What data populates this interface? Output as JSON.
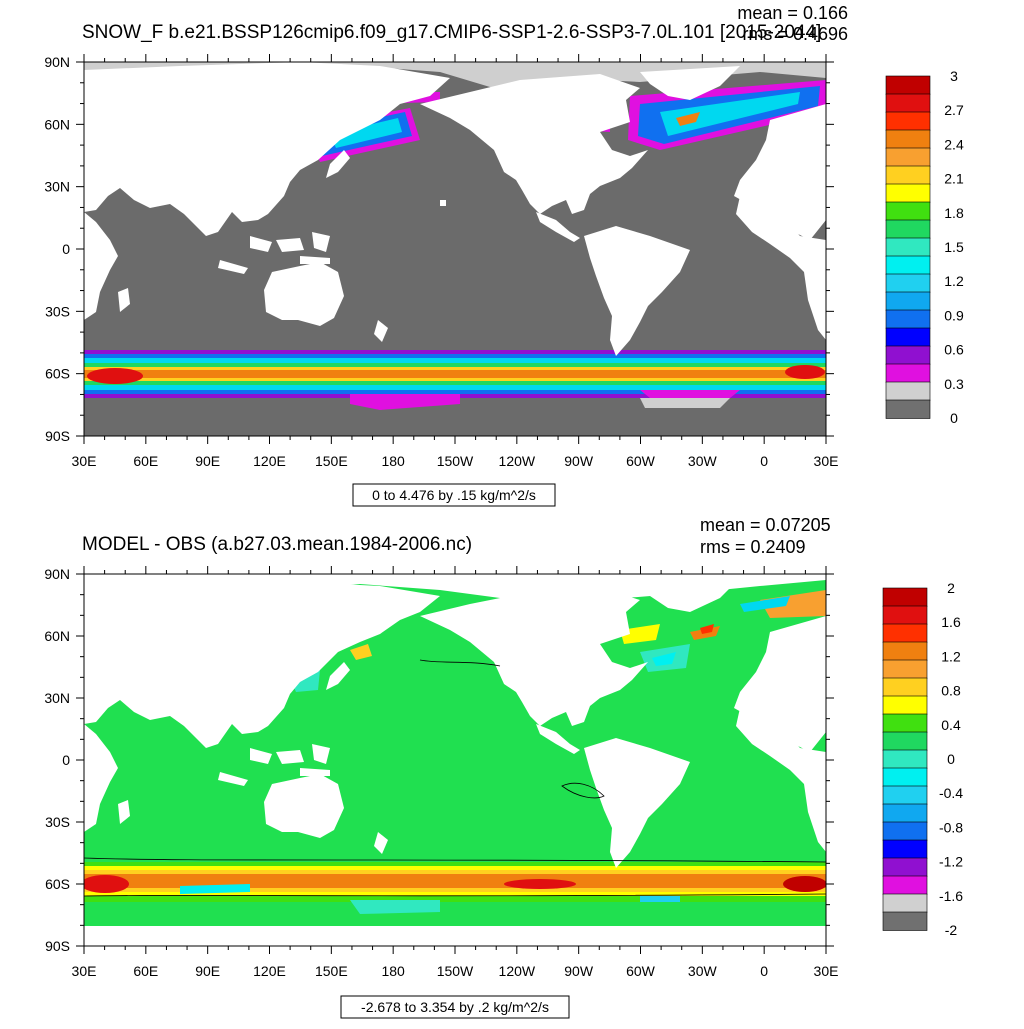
{
  "panels": [
    {
      "title": "SNOW_F b.e21.BSSP126cmip6.f09_g17.CMIP6-SSP1-2.6-SSP3-7.0L.101 [2015-2044]",
      "mean_text": "mean = 0.166",
      "rms_text": "rms = 0.4696",
      "range_text": "0 to 4.476 by .15 kg/m^2/s",
      "lat_labels": [
        "90N",
        "60N",
        "30N",
        "0",
        "30S",
        "60S",
        "90S"
      ],
      "lon_labels": [
        "30E",
        "60E",
        "90E",
        "120E",
        "150E",
        "180",
        "150W",
        "120W",
        "90W",
        "60W",
        "30W",
        "0",
        "30E"
      ],
      "colorbar": {
        "labels": [
          "3",
          "2.7",
          "2.4",
          "2.1",
          "1.8",
          "1.5",
          "1.2",
          "0.9",
          "0.6",
          "0.3",
          "0"
        ],
        "colors": [
          "#C00000",
          "#E01010",
          "#FF3000",
          "#F08010",
          "#F8A030",
          "#FFD020",
          "#FFFF00",
          "#40E010",
          "#20D860",
          "#30E8C0",
          "#00F0F0",
          "#20D0F0",
          "#10A8F0",
          "#1070F0",
          "#0000FF",
          "#9010D0",
          "#E010E0",
          "#D0D0D0",
          "#707070"
        ]
      }
    },
    {
      "title": "MODEL - OBS (a.b27.03.mean.1984-2006.nc)",
      "mean_text": "mean = 0.07205",
      "rms_text": "rms = 0.2409",
      "range_text": "-2.678 to 3.354 by .2 kg/m^2/s",
      "lat_labels": [
        "90N",
        "60N",
        "30N",
        "0",
        "30S",
        "60S",
        "90S"
      ],
      "lon_labels": [
        "30E",
        "60E",
        "90E",
        "120E",
        "150E",
        "180",
        "150W",
        "120W",
        "90W",
        "60W",
        "30W",
        "0",
        "30E"
      ],
      "colorbar": {
        "labels": [
          "2",
          "1.6",
          "1.2",
          "0.8",
          "0.4",
          "0",
          "-0.4",
          "-0.8",
          "-1.2",
          "-1.6",
          "-2"
        ],
        "colors": [
          "#C00000",
          "#E01010",
          "#FF3000",
          "#F08010",
          "#F8A030",
          "#FFD020",
          "#FFFF00",
          "#40E010",
          "#20D860",
          "#30E8C0",
          "#00F0F0",
          "#20D0F0",
          "#10A8F0",
          "#1070F0",
          "#0000FF",
          "#9010D0",
          "#E010E0",
          "#D0D0D0",
          "#707070"
        ]
      }
    }
  ],
  "chart_data": [
    {
      "type": "heatmap",
      "title": "SNOW_F b.e21.BSSP126cmip6.f09_g17.CMIP6-SSP1-2.6-SSP3-7.0L.101 [2015-2044]",
      "xlabel": "",
      "ylabel": "",
      "x_ticks": [
        "30E",
        "60E",
        "90E",
        "120E",
        "150E",
        "180",
        "150W",
        "120W",
        "90W",
        "60W",
        "30W",
        "0",
        "30E"
      ],
      "y_ticks": [
        "90N",
        "60N",
        "30N",
        "0",
        "30S",
        "60S",
        "90S"
      ],
      "lon_range": [
        30,
        390
      ],
      "lat_range": [
        -90,
        90
      ],
      "color_range": [
        0,
        3
      ],
      "color_step": 0.15,
      "mean": 0.166,
      "rms": 0.4696,
      "grid": false,
      "legend": "right"
    },
    {
      "type": "heatmap",
      "title": "MODEL - OBS (a.b27.03.mean.1984-2006.nc)",
      "xlabel": "",
      "ylabel": "",
      "x_ticks": [
        "30E",
        "60E",
        "90E",
        "120E",
        "150E",
        "180",
        "150W",
        "120W",
        "90W",
        "60W",
        "30W",
        "0",
        "30E"
      ],
      "y_ticks": [
        "90N",
        "60N",
        "30N",
        "0",
        "30S",
        "60S",
        "90S"
      ],
      "lon_range": [
        30,
        390
      ],
      "lat_range": [
        -90,
        90
      ],
      "color_range": [
        -2,
        2
      ],
      "color_step": 0.2,
      "mean": 0.07205,
      "rms": 0.2409,
      "grid": false,
      "legend": "right"
    }
  ]
}
